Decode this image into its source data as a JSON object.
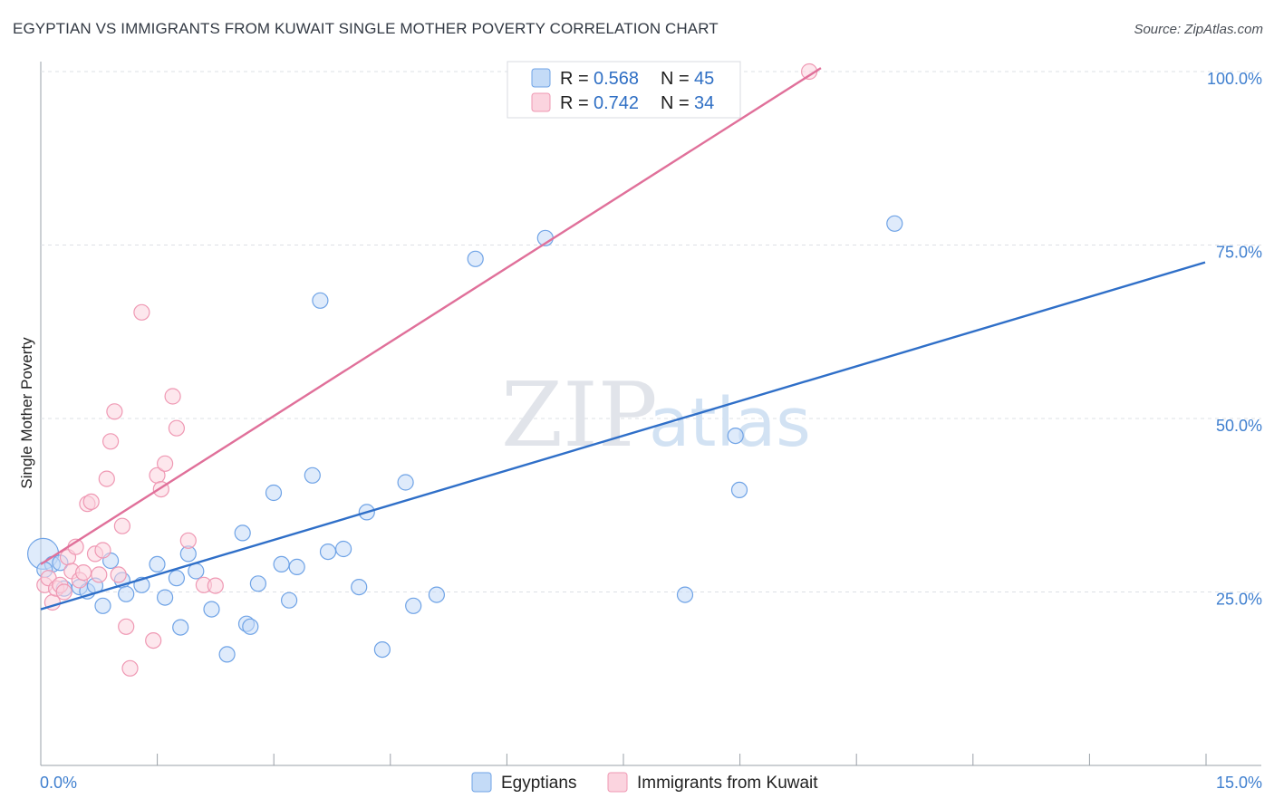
{
  "title": "EGYPTIAN VS IMMIGRANTS FROM KUWAIT SINGLE MOTHER POVERTY CORRELATION CHART",
  "source": "Source: ZipAtlas.com",
  "watermark": {
    "part1": "ZIP",
    "part2": "atlas"
  },
  "chart_data": {
    "type": "scatter",
    "xlabel": "",
    "ylabel": "Single Mother Poverty",
    "xlim": [
      0,
      15
    ],
    "ylim": [
      0,
      100
    ],
    "x_tick_labels": {
      "left": "0.0%",
      "right": "15.0%"
    },
    "y_ticks": [
      25,
      50,
      75,
      100
    ],
    "y_tick_labels": [
      "25.0%",
      "50.0%",
      "75.0%",
      "100.0%"
    ],
    "legend": {
      "position": "top-center",
      "rows": [
        {
          "r_label": "R =",
          "r_value": "0.568",
          "n_label": "N =",
          "n_value": "45"
        },
        {
          "r_label": "R =",
          "r_value": "0.742",
          "n_label": "N =",
          "n_value": "34"
        }
      ]
    },
    "series": [
      {
        "name": "Egyptians",
        "color": "#6fa3e6",
        "fill": "#c4dbf7",
        "trend_color": "#2f6fc8",
        "trend": {
          "x": [
            0,
            15
          ],
          "y": [
            22.5,
            72.5
          ]
        },
        "points": [
          [
            0.03,
            30.5
          ],
          [
            0.15,
            29.0
          ],
          [
            0.25,
            29.2
          ],
          [
            0.3,
            25.5
          ],
          [
            0.5,
            25.7
          ],
          [
            0.6,
            25.1
          ],
          [
            0.7,
            25.9
          ],
          [
            0.8,
            23.0
          ],
          [
            0.9,
            29.5
          ],
          [
            1.05,
            26.7
          ],
          [
            1.1,
            24.7
          ],
          [
            1.3,
            26.0
          ],
          [
            1.5,
            29.0
          ],
          [
            1.6,
            24.2
          ],
          [
            1.8,
            19.9
          ],
          [
            1.75,
            27.0
          ],
          [
            1.9,
            30.5
          ],
          [
            2.0,
            28.0
          ],
          [
            2.2,
            22.5
          ],
          [
            2.4,
            16.0
          ],
          [
            2.6,
            33.5
          ],
          [
            2.65,
            20.4
          ],
          [
            2.7,
            20.0
          ],
          [
            2.8,
            26.2
          ],
          [
            3.0,
            39.3
          ],
          [
            3.1,
            29.0
          ],
          [
            3.2,
            23.8
          ],
          [
            3.3,
            28.6
          ],
          [
            3.5,
            41.8
          ],
          [
            3.6,
            67.0
          ],
          [
            3.7,
            30.8
          ],
          [
            3.9,
            31.2
          ],
          [
            4.1,
            25.7
          ],
          [
            4.2,
            36.5
          ],
          [
            4.4,
            16.7
          ],
          [
            4.7,
            40.8
          ],
          [
            4.8,
            23.0
          ],
          [
            5.1,
            24.6
          ],
          [
            5.6,
            73.0
          ],
          [
            6.5,
            76.0
          ],
          [
            8.3,
            24.6
          ],
          [
            8.95,
            47.5
          ],
          [
            9.0,
            39.7
          ],
          [
            11.0,
            78.1
          ],
          [
            0.05,
            28.2
          ]
        ]
      },
      {
        "name": "Immigrants from Kuwait",
        "color": "#ef98b3",
        "fill": "#fbd4df",
        "trend_color": "#e0709a",
        "trend": {
          "x": [
            0,
            10.05
          ],
          "y": [
            29.0,
            100.5
          ]
        },
        "points": [
          [
            0.05,
            26.0
          ],
          [
            0.1,
            27.0
          ],
          [
            0.15,
            23.5
          ],
          [
            0.2,
            25.5
          ],
          [
            0.25,
            26.0
          ],
          [
            0.3,
            25.0
          ],
          [
            0.35,
            30.0
          ],
          [
            0.4,
            28.0
          ],
          [
            0.45,
            31.5
          ],
          [
            0.5,
            26.7
          ],
          [
            0.6,
            37.7
          ],
          [
            0.65,
            38.0
          ],
          [
            0.7,
            30.5
          ],
          [
            0.75,
            27.5
          ],
          [
            0.8,
            31.0
          ],
          [
            0.85,
            41.3
          ],
          [
            0.9,
            46.7
          ],
          [
            0.95,
            51.0
          ],
          [
            1.0,
            27.5
          ],
          [
            1.05,
            34.5
          ],
          [
            1.1,
            20.0
          ],
          [
            1.15,
            14.0
          ],
          [
            1.3,
            65.3
          ],
          [
            1.45,
            18.0
          ],
          [
            1.5,
            41.8
          ],
          [
            1.55,
            39.8
          ],
          [
            1.6,
            43.5
          ],
          [
            1.7,
            53.2
          ],
          [
            1.75,
            48.6
          ],
          [
            1.9,
            32.4
          ],
          [
            2.1,
            26.0
          ],
          [
            2.25,
            25.9
          ],
          [
            9.9,
            100.0
          ],
          [
            0.55,
            27.8
          ]
        ]
      }
    ]
  }
}
